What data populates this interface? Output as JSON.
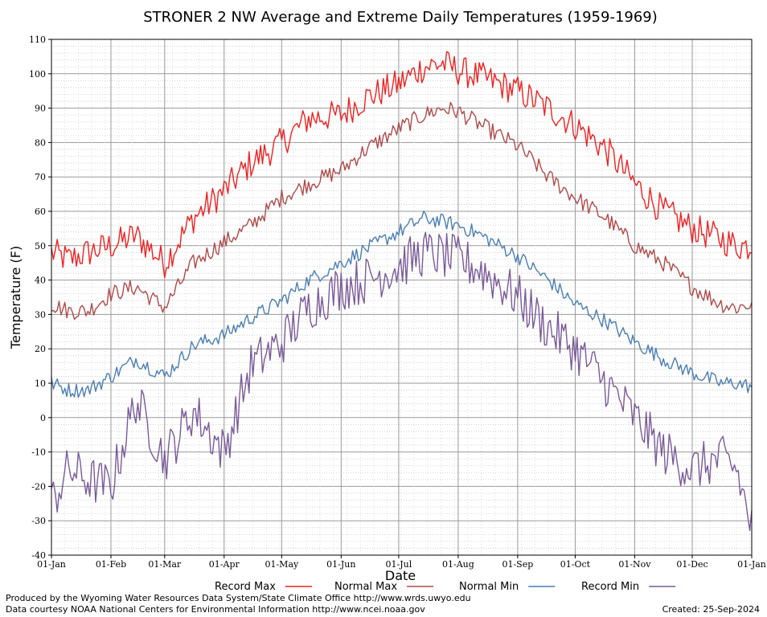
{
  "chart_data": {
    "type": "line",
    "title": "STRONER 2 NW Average and Extreme Daily Temperatures (1959-1969)",
    "xlabel": "Date",
    "ylabel": "Temperature (F)",
    "ylim": [
      -40,
      110
    ],
    "yticks": [
      -40,
      -30,
      -20,
      -10,
      0,
      10,
      20,
      30,
      40,
      50,
      60,
      70,
      80,
      90,
      100,
      110
    ],
    "xticks": [
      "01-Jan",
      "01-Feb",
      "01-Mar",
      "01-Apr",
      "01-May",
      "01-Jun",
      "01-Jul",
      "01-Aug",
      "01-Sep",
      "01-Oct",
      "01-Nov",
      "01-Dec",
      "01-Jan"
    ],
    "xtick_days": [
      1,
      32,
      60,
      91,
      121,
      152,
      182,
      213,
      244,
      274,
      305,
      335,
      366
    ],
    "grid": true,
    "legend_position": "bottom",
    "colors": {
      "record_max": "#ee2222",
      "normal_max": "#b04a4a",
      "normal_min": "#4a7fb5",
      "record_min": "#7a5a9a"
    },
    "series_anchor_day": [
      1,
      10,
      20,
      32,
      45,
      60,
      75,
      91,
      105,
      121,
      135,
      152,
      165,
      182,
      195,
      205,
      213,
      225,
      244,
      260,
      274,
      290,
      305,
      320,
      335,
      350,
      358,
      366
    ],
    "series": [
      {
        "name": "Record Max",
        "key": "record_max",
        "values": [
          48,
          46,
          48,
          50,
          53,
          45,
          58,
          66,
          74,
          80,
          87,
          88,
          93,
          97,
          102,
          103,
          101,
          99,
          95,
          90,
          85,
          78,
          68,
          60,
          55,
          52,
          50,
          50
        ]
      },
      {
        "name": "Normal Max",
        "key": "normal_max",
        "values": [
          33,
          31,
          31,
          36,
          38,
          32,
          45,
          51,
          56,
          64,
          68,
          72,
          78,
          84,
          88,
          90,
          89,
          85,
          79,
          70,
          64,
          58,
          50,
          45,
          38,
          33,
          32,
          33
        ]
      },
      {
        "name": "Normal Min",
        "key": "normal_min",
        "values": [
          10,
          8,
          8,
          12,
          17,
          12,
          21,
          24,
          29,
          34,
          40,
          45,
          49,
          54,
          58,
          57,
          56,
          53,
          47,
          40,
          33,
          28,
          22,
          17,
          13,
          10,
          10,
          9
        ]
      },
      {
        "name": "Record Min",
        "key": "record_min",
        "values": [
          -25,
          -15,
          -18,
          -20,
          5,
          -12,
          2,
          -10,
          15,
          22,
          32,
          38,
          40,
          44,
          48,
          47,
          46,
          43,
          35,
          26,
          20,
          10,
          0,
          -10,
          -15,
          -12,
          -15,
          -32
        ]
      }
    ]
  },
  "footer": {
    "left_line1": "Produced by the Wyoming Water Resources Data System/State Climate Office http://www.wrds.uwyo.edu",
    "left_line2": "Data courtesy NOAA National Centers for Environmental Information http://www.ncei.noaa.gov",
    "created": "Created:  25-Sep-2024"
  }
}
